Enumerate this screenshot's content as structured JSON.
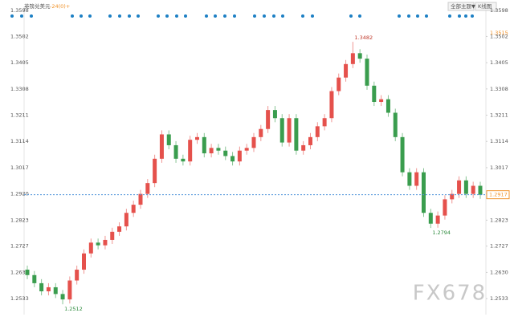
{
  "chart_data": {
    "type": "candlestick",
    "title": "英镑兑美元",
    "title_note": "-24(0)+",
    "buttons": [
      "全部主题▼",
      "K线图"
    ],
    "watermark": "FX678",
    "up_color": "#e5514c",
    "down_color": "#3a9d4e",
    "ylim": [
      1.2474,
      1.3613
    ],
    "yticks": [
      1.2533,
      {
        "value": 1.263,
        "label": "1.2630"
      },
      1.2727,
      1.2823,
      {
        "value": 1.292,
        "label": "1.2920"
      },
      1.3017,
      1.3114,
      1.3211,
      1.3308,
      1.3405,
      1.3502,
      1.3598
    ],
    "right_marker": 1.3515,
    "last_price": 1.2917,
    "annotations": [
      1.3482,
      1.2512,
      1.2794
    ],
    "open": [
      1.264,
      1.262,
      1.259,
      1.256,
      1.2575,
      1.255,
      1.253,
      1.26,
      1.264,
      1.27,
      1.274,
      1.273,
      1.275,
      1.278,
      1.28,
      1.285,
      1.288,
      1.292,
      1.296,
      1.305,
      1.314,
      1.31,
      1.305,
      1.304,
      1.312,
      1.313,
      1.307,
      1.309,
      1.308,
      1.306,
      1.304,
      1.308,
      1.309,
      1.313,
      1.316,
      1.323,
      1.32,
      1.311,
      1.32,
      1.308,
      1.31,
      1.313,
      1.317,
      1.32,
      1.33,
      1.335,
      1.34,
      1.344,
      1.342,
      1.332,
      1.326,
      1.327,
      1.322,
      1.313,
      1.3,
      1.295,
      1.3,
      1.285,
      1.281,
      1.284,
      1.29,
      1.292,
      1.297,
      1.292,
      1.295
    ],
    "high": [
      1.2655,
      1.2635,
      1.2605,
      1.259,
      1.259,
      1.2565,
      1.2615,
      1.2655,
      1.2715,
      1.2755,
      1.2755,
      1.2765,
      1.2795,
      1.2815,
      1.2865,
      1.2895,
      1.2935,
      1.2975,
      1.3065,
      1.3155,
      1.3155,
      1.3115,
      1.3065,
      1.3135,
      1.3145,
      1.3145,
      1.3105,
      1.3105,
      1.3095,
      1.3075,
      1.3095,
      1.3105,
      1.3145,
      1.3175,
      1.3245,
      1.3245,
      1.3215,
      1.3215,
      1.3215,
      1.3115,
      1.3145,
      1.3185,
      1.3215,
      1.3315,
      1.3365,
      1.3415,
      1.3482,
      1.3455,
      1.3435,
      1.3335,
      1.3285,
      1.3285,
      1.3235,
      1.3145,
      1.3015,
      1.3015,
      1.3015,
      1.2865,
      1.2855,
      1.2915,
      1.2935,
      1.2985,
      1.2985,
      1.2965,
      1.2965
    ],
    "low": [
      1.2605,
      1.2575,
      1.2545,
      1.2545,
      1.2535,
      1.2512,
      1.2515,
      1.2585,
      1.2625,
      1.2685,
      1.2715,
      1.2715,
      1.2735,
      1.2765,
      1.2785,
      1.2835,
      1.2865,
      1.2905,
      1.2945,
      1.3035,
      1.3085,
      1.3035,
      1.3025,
      1.3025,
      1.3105,
      1.3055,
      1.3055,
      1.3065,
      1.3045,
      1.3025,
      1.3025,
      1.3065,
      1.3075,
      1.3115,
      1.3145,
      1.3185,
      1.3095,
      1.3095,
      1.3065,
      1.3065,
      1.3085,
      1.3115,
      1.3155,
      1.3185,
      1.3285,
      1.3335,
      1.3385,
      1.3405,
      1.3305,
      1.3245,
      1.3245,
      1.3205,
      1.3115,
      1.2985,
      1.2935,
      1.2935,
      1.2835,
      1.2794,
      1.2795,
      1.2825,
      1.2885,
      1.2905,
      1.2905,
      1.2905,
      1.2902
    ],
    "close": [
      1.262,
      1.259,
      1.256,
      1.2575,
      1.255,
      1.253,
      1.26,
      1.264,
      1.27,
      1.274,
      1.273,
      1.275,
      1.278,
      1.28,
      1.285,
      1.288,
      1.292,
      1.296,
      1.305,
      1.314,
      1.31,
      1.305,
      1.304,
      1.312,
      1.313,
      1.307,
      1.309,
      1.308,
      1.306,
      1.304,
      1.308,
      1.309,
      1.313,
      1.316,
      1.323,
      1.32,
      1.311,
      1.32,
      1.308,
      1.31,
      1.313,
      1.317,
      1.32,
      1.33,
      1.335,
      1.34,
      1.344,
      1.342,
      1.332,
      1.326,
      1.327,
      1.322,
      1.313,
      1.3,
      1.295,
      1.3,
      1.285,
      1.281,
      1.284,
      1.29,
      1.292,
      1.297,
      1.292,
      1.295,
      1.2917
    ]
  }
}
